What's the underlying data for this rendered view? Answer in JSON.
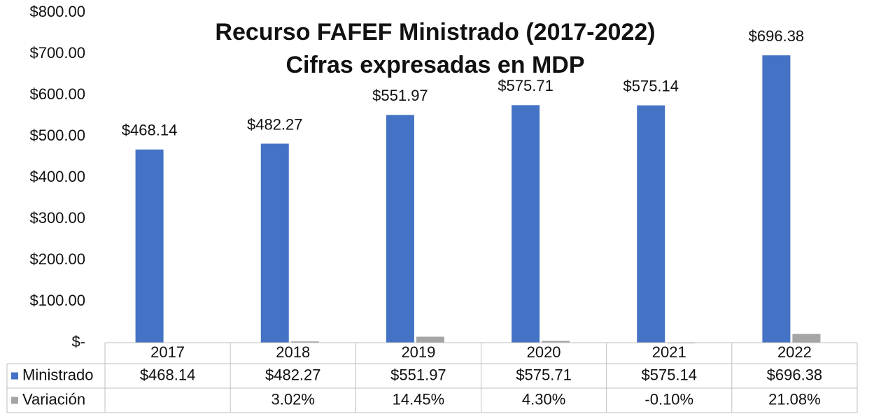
{
  "chart_data": {
    "type": "bar",
    "title": "Recurso FAFEF Ministrado (2017-2022)",
    "subtitle": "Cifras expresadas en MDP",
    "categories": [
      "2017",
      "2018",
      "2019",
      "2020",
      "2021",
      "2022"
    ],
    "series": [
      {
        "name": "Ministrado",
        "color": "#4472c4",
        "values": [
          468.14,
          482.27,
          551.97,
          575.71,
          575.14,
          696.38
        ],
        "value_labels": [
          "$468.14",
          "$482.27",
          "$551.97",
          "$575.71",
          "$575.14",
          "$696.38"
        ]
      },
      {
        "name": "Variación",
        "color": "#a5a5a5",
        "values": [
          null,
          3.02,
          14.45,
          4.3,
          -0.1,
          21.08
        ],
        "value_labels": [
          null,
          "3.02%",
          "14.45%",
          "4.30%",
          "-0.10%",
          "21.08%"
        ]
      }
    ],
    "ylim": [
      0,
      800
    ],
    "yticks": [
      {
        "value": 0,
        "label": "$-"
      },
      {
        "value": 100,
        "label": "$100.00"
      },
      {
        "value": 200,
        "label": "$200.00"
      },
      {
        "value": 300,
        "label": "$300.00"
      },
      {
        "value": 400,
        "label": "$400.00"
      },
      {
        "value": 500,
        "label": "$500.00"
      },
      {
        "value": 600,
        "label": "$600.00"
      },
      {
        "value": 700,
        "label": "$700.00"
      },
      {
        "value": 800,
        "label": "$800.00"
      }
    ],
    "grid": false,
    "data_table": true
  }
}
